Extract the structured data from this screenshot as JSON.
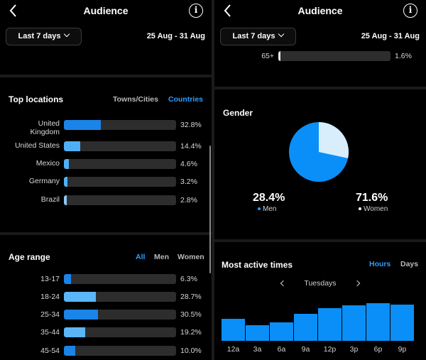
{
  "left": {
    "header": {
      "title": "Audience"
    },
    "date_range_button": "Last 7 days",
    "date_range": "25 Aug - 31 Aug",
    "top_locations": {
      "title": "Top locations",
      "tabs": [
        "Towns/Cities",
        "Countries"
      ],
      "active_tab": "Countries",
      "rows": [
        {
          "label_line1": "United",
          "label_line2": "Kingdom",
          "percent": "32.8%",
          "value": 32.8,
          "color": "#1a84e8"
        },
        {
          "label_line1": "United States",
          "label_line2": "",
          "percent": "14.4%",
          "value": 14.4,
          "color": "#4fb0f5"
        },
        {
          "label_line1": "Mexico",
          "label_line2": "",
          "percent": "4.6%",
          "value": 4.6,
          "color": "#4fb0f5"
        },
        {
          "label_line1": "Germany",
          "label_line2": "",
          "percent": "3.2%",
          "value": 3.2,
          "color": "#4fb0f5"
        },
        {
          "label_line1": "Brazil",
          "label_line2": "",
          "percent": "2.8%",
          "value": 2.8,
          "color": "#8cc8f5"
        }
      ]
    },
    "age_range": {
      "title": "Age range",
      "tabs": [
        "All",
        "Men",
        "Women"
      ],
      "active_tab": "All",
      "rows": [
        {
          "label": "13-17",
          "percent": "6.3%",
          "value": 6.3,
          "color": "#1a84e8"
        },
        {
          "label": "18-24",
          "percent": "28.7%",
          "value": 28.7,
          "color": "#5ab6f6"
        },
        {
          "label": "25-34",
          "percent": "30.5%",
          "value": 30.5,
          "color": "#1a84e8"
        },
        {
          "label": "35-44",
          "percent": "19.2%",
          "value": 19.2,
          "color": "#5ab6f6"
        },
        {
          "label": "45-54",
          "percent": "10.0%",
          "value": 10.0,
          "color": "#1a84e8"
        }
      ]
    }
  },
  "right": {
    "header": {
      "title": "Audience"
    },
    "date_range_button": "Last 7 days",
    "date_range": "25 Aug - 31 Aug",
    "age_row": {
      "label": "65+",
      "percent": "1.6%",
      "value": 1.6,
      "color": "#e8e8e8"
    },
    "gender": {
      "title": "Gender",
      "men": {
        "percent": "28.4%",
        "label": "Men",
        "value": 28.4,
        "color": "#d9eefc"
      },
      "women": {
        "percent": "71.6%",
        "label": "Women",
        "value": 71.6,
        "color": "#0a8ff8"
      }
    },
    "active_times": {
      "title": "Most active times",
      "tabs": [
        "Hours",
        "Days"
      ],
      "active_tab": "Hours",
      "day": "Tuesdays",
      "hours": [
        "12a",
        "3a",
        "6a",
        "9a",
        "12p",
        "3p",
        "6p",
        "9p"
      ],
      "values": [
        62,
        45,
        52,
        76,
        93,
        100,
        106,
        102
      ]
    }
  }
}
